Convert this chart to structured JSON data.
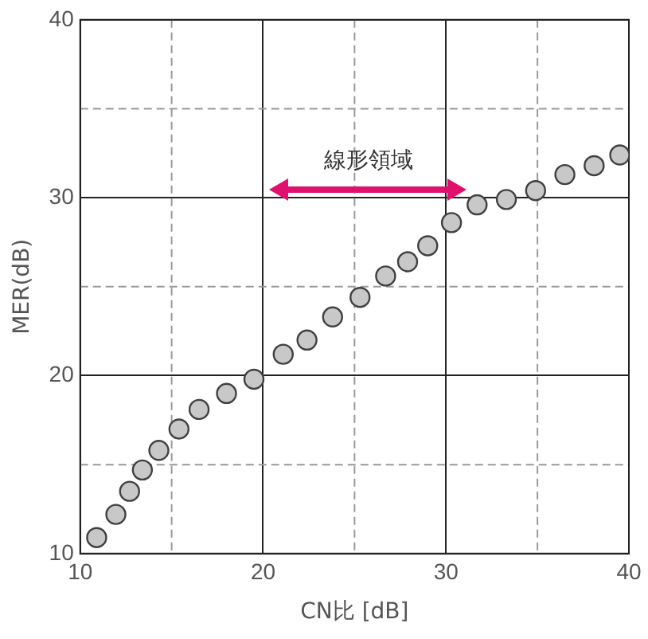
{
  "chart_data": {
    "type": "scatter",
    "xlabel": "CN比 [dB]",
    "ylabel": "MER(dB)",
    "x": [
      10.9,
      11.95,
      12.7,
      13.4,
      14.3,
      15.4,
      16.5,
      18.0,
      19.5,
      21.1,
      22.4,
      23.8,
      25.3,
      26.7,
      27.9,
      29.0,
      30.3,
      31.7,
      33.3,
      34.9,
      36.5,
      38.1,
      39.5
    ],
    "series": [
      {
        "color": "#c8c8c8",
        "values": [
          10.9,
          12.2,
          13.5,
          14.7,
          15.8,
          17.0,
          18.1,
          19.0,
          19.8,
          21.2,
          22.0,
          23.3,
          24.4,
          25.6,
          26.4,
          27.3,
          28.6,
          29.6,
          29.9,
          30.4,
          31.3,
          31.8,
          32.4
        ]
      }
    ],
    "xlim": [
      10,
      40
    ],
    "ylim": [
      10,
      40
    ],
    "xticks": [
      10,
      20,
      30,
      40
    ],
    "yticks": [
      10,
      20,
      30,
      40
    ],
    "grid": true,
    "marker": "circle",
    "legend": false,
    "annotations": [
      "線形領域"
    ]
  }
}
